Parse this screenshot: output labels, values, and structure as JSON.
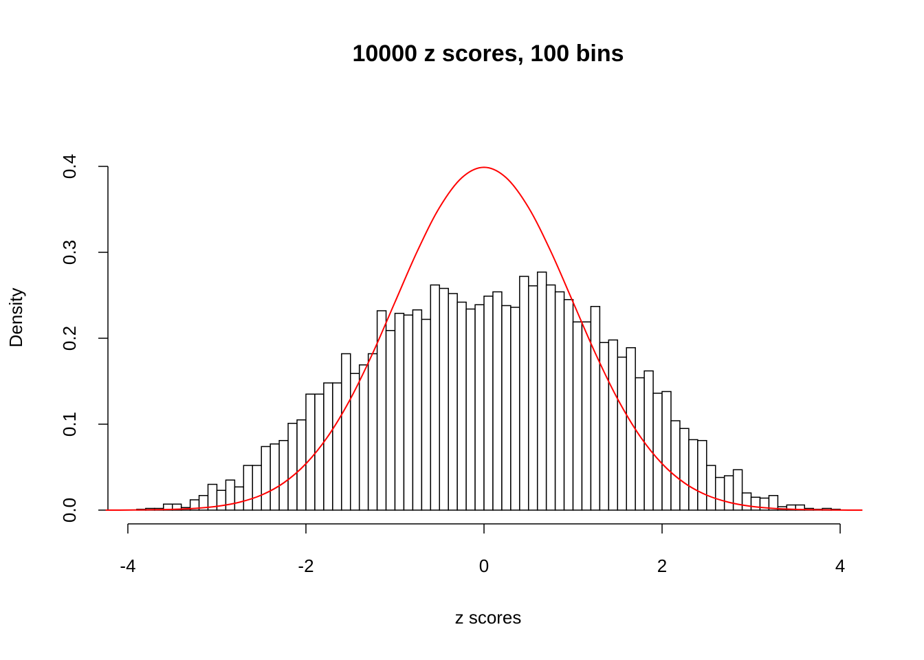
{
  "chart_data": {
    "type": "histogram",
    "title": "10000 z scores, 100 bins",
    "x_label": "z scores",
    "y_label": "Density",
    "bins": [
      -3.9,
      -3.8,
      -3.7,
      -3.6,
      -3.5,
      -3.4,
      -3.3,
      -3.2,
      -3.1,
      -3.0,
      -2.9,
      -2.8,
      -2.7,
      -2.6,
      -2.5,
      -2.4,
      -2.3,
      -2.2,
      -2.1,
      -2.0,
      -1.9,
      -1.8,
      -1.7,
      -1.6,
      -1.5,
      -1.4,
      -1.3,
      -1.2,
      -1.1,
      -1.0,
      -0.9,
      -0.8,
      -0.7,
      -0.6,
      -0.5,
      -0.4,
      -0.3,
      -0.2,
      -0.1,
      0.0,
      0.1,
      0.2,
      0.3,
      0.4,
      0.5,
      0.6,
      0.7,
      0.8,
      0.9,
      1.0,
      1.1,
      1.2,
      1.3,
      1.4,
      1.5,
      1.6,
      1.7,
      1.8,
      1.9,
      2.0,
      2.1,
      2.2,
      2.3,
      2.4,
      2.5,
      2.6,
      2.7,
      2.8,
      2.9,
      3.0,
      3.1,
      3.2,
      3.3,
      3.4,
      3.5,
      3.6,
      3.7,
      3.8,
      3.9,
      4.0
    ],
    "values": [
      0.001,
      0.002,
      0.002,
      0.007,
      0.007,
      0.003,
      0.012,
      0.017,
      0.03,
      0.023,
      0.035,
      0.027,
      0.052,
      0.052,
      0.074,
      0.077,
      0.081,
      0.101,
      0.105,
      0.135,
      0.135,
      0.148,
      0.148,
      0.182,
      0.159,
      0.169,
      0.182,
      0.232,
      0.209,
      0.229,
      0.227,
      0.233,
      0.222,
      0.262,
      0.258,
      0.252,
      0.242,
      0.234,
      0.239,
      0.249,
      0.254,
      0.238,
      0.236,
      0.272,
      0.261,
      0.277,
      0.262,
      0.254,
      0.245,
      0.219,
      0.219,
      0.237,
      0.195,
      0.198,
      0.178,
      0.189,
      0.154,
      0.162,
      0.136,
      0.138,
      0.104,
      0.095,
      0.082,
      0.081,
      0.052,
      0.038,
      0.04,
      0.047,
      0.02,
      0.015,
      0.014,
      0.017,
      0.004,
      0.006,
      0.006,
      0.002,
      0.001,
      0.002,
      0.001
    ],
    "color": "#ffffff",
    "edge_color": "#000000",
    "curve": {
      "color": "#ff0000",
      "x": [
        -4.25,
        -4.0,
        -3.75,
        -3.5,
        -3.25,
        -3.0,
        -2.75,
        -2.5,
        -2.25,
        -2.0,
        -1.75,
        -1.5,
        -1.25,
        -1.0,
        -0.75,
        -0.5,
        -0.25,
        0,
        0.25,
        0.5,
        0.75,
        1.0,
        1.25,
        1.5,
        1.75,
        2.0,
        2.25,
        2.5,
        2.75,
        3.0,
        3.25,
        3.5,
        3.75,
        4.0,
        4.25
      ],
      "values": [
        0.0,
        0.0001,
        0.0004,
        0.0009,
        0.002,
        0.0044,
        0.0091,
        0.0175,
        0.0317,
        0.054,
        0.0863,
        0.1295,
        0.1826,
        0.242,
        0.3011,
        0.3521,
        0.3867,
        0.3989,
        0.3867,
        0.3521,
        0.3011,
        0.242,
        0.1826,
        0.1295,
        0.0863,
        0.054,
        0.0317,
        0.0175,
        0.0091,
        0.0044,
        0.002,
        0.0009,
        0.0004,
        0.0001,
        0.0
      ]
    },
    "xlim": [
      -4.25,
      4.3
    ],
    "ylim": [
      0,
      0.4
    ],
    "xticks": [
      -4,
      -2,
      0,
      2,
      4
    ],
    "yticks": [
      {
        "value": 0,
        "label": "0.0"
      },
      0.1,
      0.2,
      0.3,
      0.4
    ]
  }
}
